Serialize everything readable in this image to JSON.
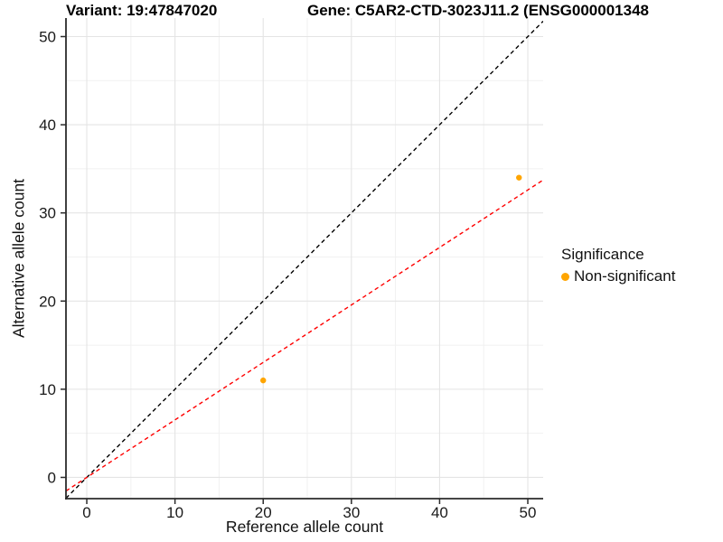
{
  "figure": {
    "title_variant": "Variant: 19:47847020",
    "title_gene": "Gene: C5AR2-CTD-3023J11.2 (ENSG000001348"
  },
  "chart_data": {
    "type": "scatter",
    "title": "Variant: 19:47847020   Gene: C5AR2-CTD-3023J11.2 (ENSG000001348",
    "xlabel": "Reference allele count",
    "ylabel": "Alternative allele count",
    "xlim": [
      -2.36,
      51.74
    ],
    "ylim": [
      -2.41,
      52.1
    ],
    "xticks": [
      0,
      10,
      20,
      30,
      40,
      50
    ],
    "yticks": [
      0,
      10,
      20,
      30,
      40,
      50
    ],
    "minor_xticks": [
      5,
      15,
      25,
      35,
      45
    ],
    "minor_yticks": [
      5,
      15,
      25,
      35,
      45
    ],
    "grid": "major+minor",
    "points": [
      {
        "x": 20,
        "y": 11,
        "series": "Non-significant"
      },
      {
        "x": 49,
        "y": 34,
        "series": "Non-significant"
      }
    ],
    "point_color": "#FFA500",
    "lines": [
      {
        "name": "identity-line",
        "slope": 1,
        "intercept": 0,
        "color": "#000000",
        "style": "dashed"
      },
      {
        "name": "fit-line",
        "slope": 0.652,
        "intercept": 0,
        "color": "#FF0000",
        "style": "dashed"
      }
    ],
    "legend": {
      "title": "Significance",
      "position": "right",
      "items": [
        {
          "label": "Non-significant",
          "color": "#FFA500"
        }
      ]
    },
    "colors": {
      "grid_major": "#E4E4E4",
      "grid_minor": "#F1F1F1",
      "axis": "#2B2B2B",
      "tick_label": "#1A1A1A"
    }
  }
}
